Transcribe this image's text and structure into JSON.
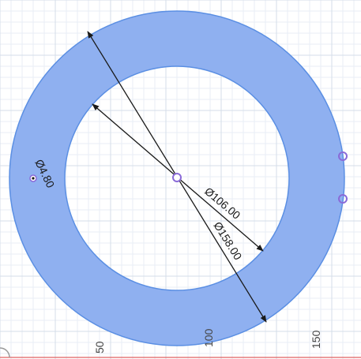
{
  "sketch": {
    "colors": {
      "background": "#ffffff",
      "grid_minor": "#e8eef5",
      "grid_major": "#d4dde8",
      "ring_fill": "#8fb0f0",
      "ring_stroke": "#5b8fe3",
      "dimension_line": "#1a1a1a",
      "point": "#8a6ad8",
      "axis_red": "#e06060"
    },
    "dimensions": {
      "outer_diameter": "Ø158.00",
      "inner_diameter": "Ø106.00",
      "hole_diameter": "Ø4.80"
    },
    "ruler": {
      "labels": [
        "50",
        "100",
        "150"
      ]
    }
  }
}
